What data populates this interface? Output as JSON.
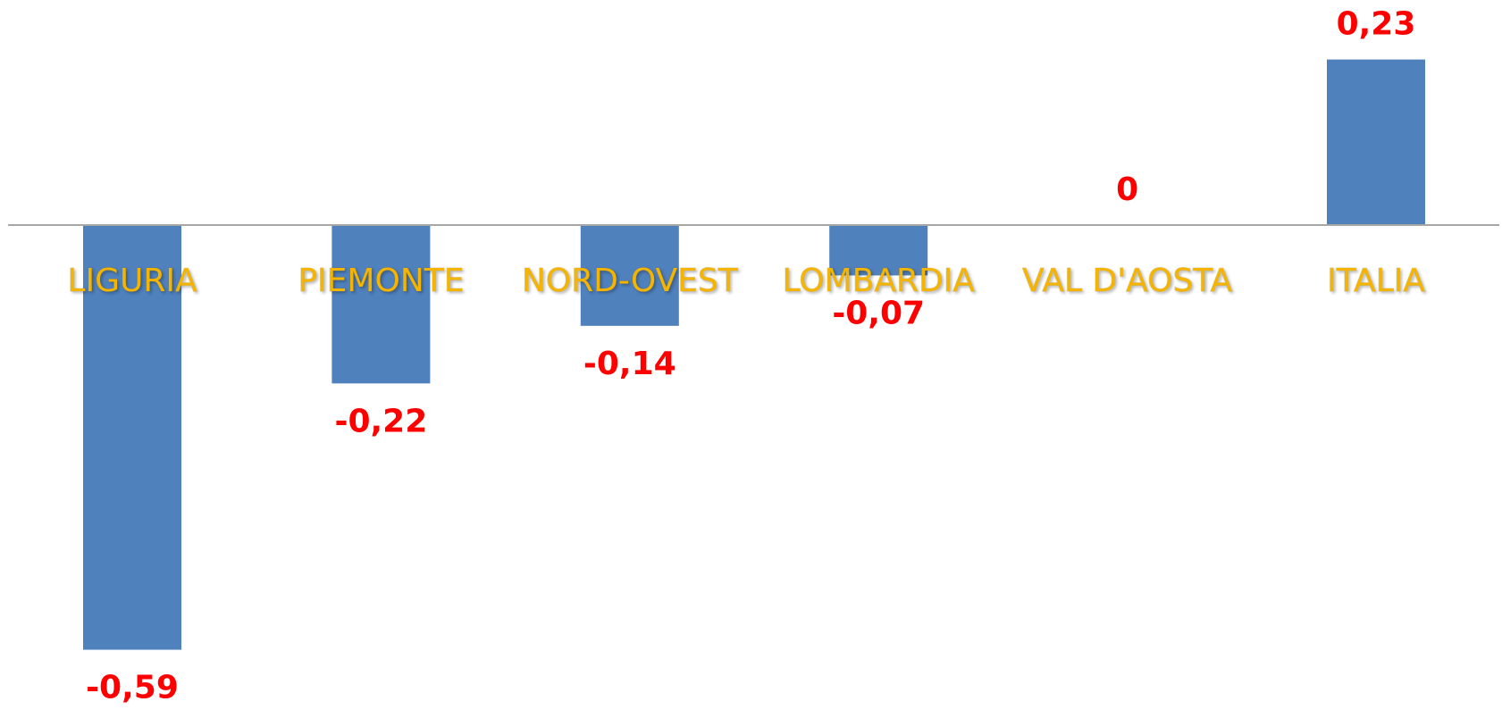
{
  "chart_data": {
    "type": "bar",
    "categories": [
      "LIGURIA",
      "PIEMONTE",
      "NORD-OVEST",
      "LOMBARDIA",
      "VAL D'AOSTA",
      "ITALIA"
    ],
    "values": [
      -0.59,
      -0.22,
      -0.14,
      -0.07,
      0,
      0.23
    ],
    "value_labels": [
      "-0,59",
      "-0,22",
      "-0,14",
      "-0,07",
      "0",
      "0,23"
    ],
    "color": "#4f81bd"
  }
}
